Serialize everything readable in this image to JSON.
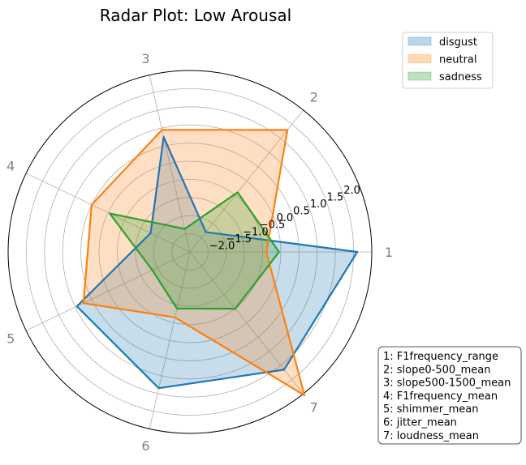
{
  "chart_data": {
    "type": "radar",
    "title": "Radar Plot: Low Arousal",
    "categories": [
      "1",
      "2",
      "3",
      "4",
      "5",
      "6",
      "7"
    ],
    "radial_ticks": [
      "−2.0",
      "−1.5",
      "−1.0",
      "−0.5",
      "0.0",
      "0.5",
      "1.0",
      "1.5",
      "2.0"
    ],
    "radial_tick_values": [
      -2.0,
      -1.5,
      -1.0,
      -0.5,
      0.0,
      0.5,
      1.0,
      1.5,
      2.0
    ],
    "rlim": [
      -2.5,
      2.5
    ],
    "grid": true,
    "legend_position": "top-right",
    "series": [
      {
        "name": "disgust",
        "color": "#1f77b4",
        "values": [
          2.1,
          -1.8,
          0.75,
          -1.3,
          0.95,
          1.35,
          1.65
        ]
      },
      {
        "name": "neutral",
        "color": "#ff7f0e",
        "values": [
          -0.4,
          1.8,
          0.95,
          0.5,
          0.75,
          -0.65,
          2.55
        ]
      },
      {
        "name": "sadness",
        "color": "#2ca02c",
        "values": [
          -0.05,
          -0.4,
          -1.85,
          -0.05,
          -1.35,
          -0.9,
          -0.5
        ]
      }
    ],
    "feature_key": [
      "1: F1frequency_range",
      "2: slope0-500_mean",
      "3: slope500-1500_mean",
      "4: F1frequency_mean",
      "5: shimmer_mean",
      "6: jitter_mean",
      "7: loudness_mean"
    ]
  }
}
